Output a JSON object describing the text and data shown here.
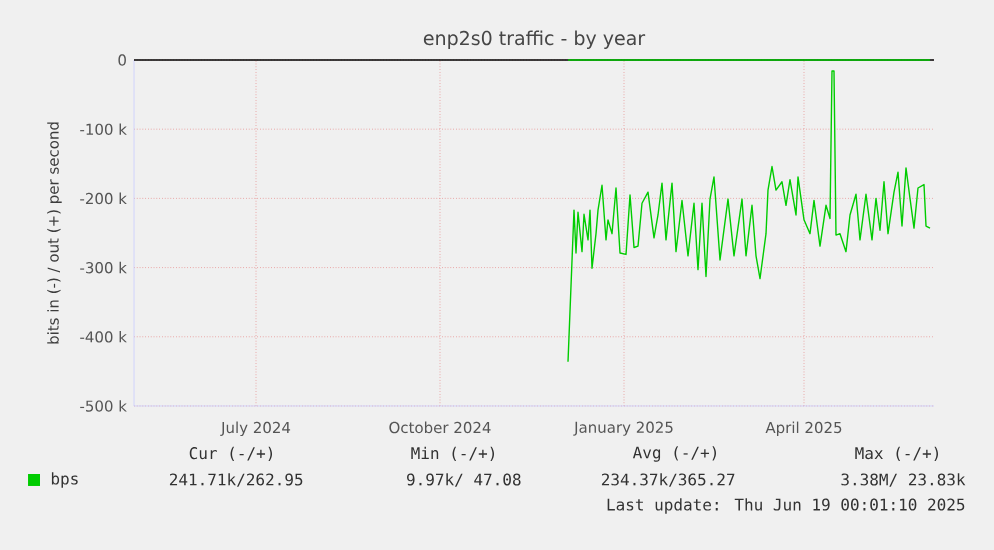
{
  "chart_data": {
    "type": "line",
    "title": "enp2s0 traffic - by year",
    "ylabel": "bits in (-) / out (+) per second",
    "xlim": [
      "2024-05-01",
      "2025-06-05"
    ],
    "xticks": [
      {
        "value": "2024-07-01",
        "label": "July 2024"
      },
      {
        "value": "2024-10-01",
        "label": "October 2024"
      },
      {
        "value": "2025-01-01",
        "label": "January 2025"
      },
      {
        "value": "2025-04-01",
        "label": "April 2025"
      }
    ],
    "ylim": [
      -500000,
      0
    ],
    "yticks": [
      {
        "value": -500000,
        "label": "-500 k"
      },
      {
        "value": -400000,
        "label": "-400 k"
      },
      {
        "value": -300000,
        "label": "-300 k"
      },
      {
        "value": -200000,
        "label": "-200 k"
      },
      {
        "value": -100000,
        "label": "-100 k"
      },
      0
    ],
    "grid": true,
    "legend": "bottom",
    "ref_lines": [
      {
        "axis": "y",
        "value": 0,
        "color": "#000000"
      }
    ],
    "series": [
      {
        "name": "bps",
        "color": "#00cc00",
        "x": [
          "2024-12-04",
          "2024-12-07",
          "2024-12-08",
          "2024-12-09",
          "2024-12-11",
          "2024-12-12",
          "2024-12-14",
          "2024-12-15",
          "2024-12-16",
          "2024-12-18",
          "2024-12-19",
          "2024-12-21",
          "2024-12-23",
          "2024-12-24",
          "2024-12-26",
          "2024-12-28",
          "2024-12-30",
          "2025-01-02",
          "2025-01-04",
          "2025-01-06",
          "2025-01-08",
          "2025-01-10",
          "2025-01-13",
          "2025-01-16",
          "2025-01-18",
          "2025-01-20",
          "2025-01-22",
          "2025-01-25",
          "2025-01-27",
          "2025-01-30",
          "2025-02-02",
          "2025-02-05",
          "2025-02-07",
          "2025-02-09",
          "2025-02-11",
          "2025-02-13",
          "2025-02-15",
          "2025-02-18",
          "2025-02-22",
          "2025-02-25",
          "2025-03-01",
          "2025-03-03",
          "2025-03-06",
          "2025-03-08",
          "2025-03-10",
          "2025-03-13",
          "2025-03-14",
          "2025-03-16",
          "2025-03-18",
          "2025-03-21",
          "2025-03-23",
          "2025-03-25",
          "2025-03-28",
          "2025-03-29",
          "2025-04-01",
          "2025-04-04",
          "2025-04-06",
          "2025-04-09",
          "2025-04-12",
          "2025-04-14",
          "2025-04-15",
          "2025-04-16",
          "2025-04-17",
          "2025-04-19",
          "2025-04-22",
          "2025-04-24",
          "2025-04-27",
          "2025-04-29",
          "2025-05-02",
          "2025-05-05",
          "2025-05-07",
          "2025-05-09",
          "2025-05-11",
          "2025-05-13",
          "2025-05-16",
          "2025-05-18",
          "2025-05-20",
          "2025-05-22",
          "2025-05-24",
          "2025-05-26",
          "2025-05-28",
          "2025-05-31",
          "2025-06-01",
          "2025-06-03"
        ],
        "values": [
          -436000,
          -217000,
          -279000,
          -220000,
          -277000,
          -223000,
          -260000,
          -217000,
          -301000,
          -251000,
          -217000,
          -181000,
          -260000,
          -231000,
          -251000,
          -185000,
          -279000,
          -281000,
          -195000,
          -271000,
          -269000,
          -207000,
          -191000,
          -257000,
          -224000,
          -178000,
          -260000,
          -178000,
          -277000,
          -203000,
          -283000,
          -207000,
          -303000,
          -207000,
          -313000,
          -201000,
          -169000,
          -289000,
          -201000,
          -283000,
          -201000,
          -283000,
          -210000,
          -283000,
          -316000,
          -251000,
          -188000,
          -154000,
          -188000,
          -176000,
          -210000,
          -173000,
          -224000,
          -169000,
          -231000,
          -251000,
          -203000,
          -269000,
          -210000,
          -229000,
          -16000,
          -16000,
          -253000,
          -251000,
          -277000,
          -224000,
          -194000,
          -260000,
          -194000,
          -260000,
          -200000,
          -246000,
          -176000,
          -251000,
          -191000,
          -162000,
          -240000,
          -156000,
          -200000,
          -243000,
          -185000,
          -180000,
          -240000,
          -243000
        ]
      },
      {
        "color": "#00cc00",
        "x": [
          "2024-12-04",
          "2025-06-03"
        ],
        "values": [
          0,
          0
        ]
      }
    ],
    "annotations": [
      "Cur (-/+)",
      "Min (-/+)",
      "Avg (-/+)",
      "Max (-/+)",
      "241.71k/262.95",
      "9.97k/ 47.08",
      "234.37k/365.27",
      "3.38M/ 23.83k",
      "Last update: Thu Jun 19 00:01:10 2025"
    ]
  }
}
